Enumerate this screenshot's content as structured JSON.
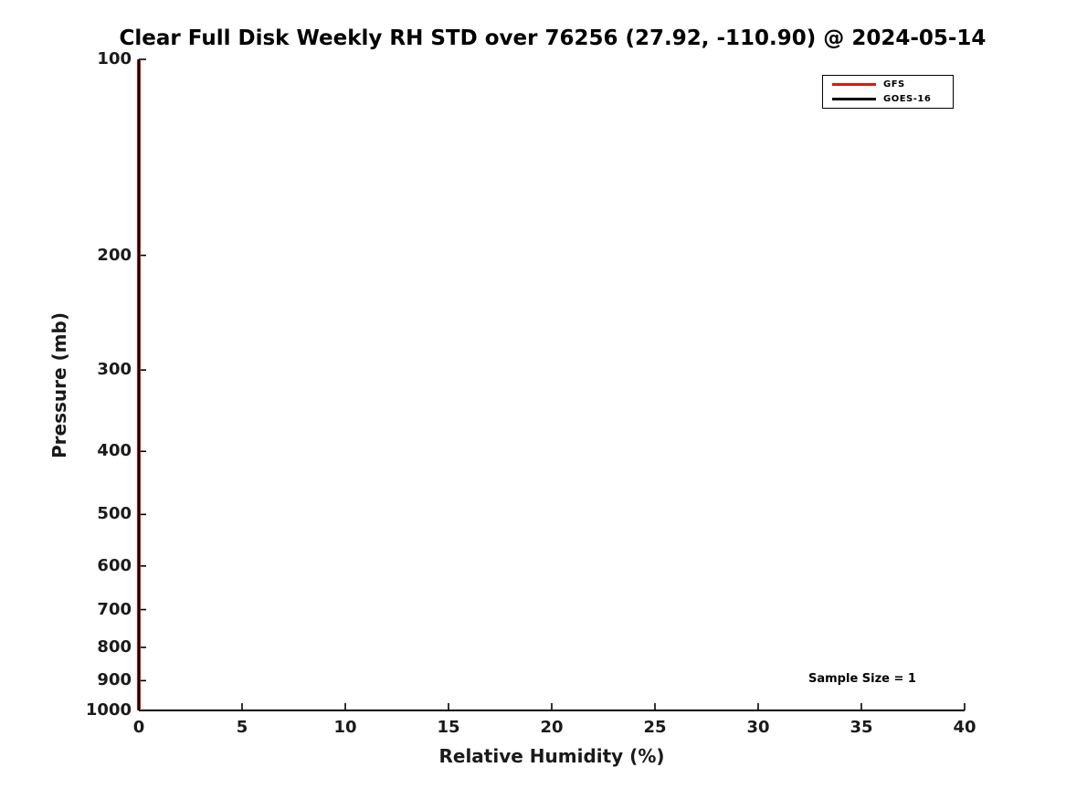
{
  "title": "Clear Full Disk Weekly RH STD over 76256 (27.92, -110.90) @ 2024-05-14",
  "annotation": {
    "sample_size": "Sample Size = 1"
  },
  "legend": {
    "position": "top-right",
    "items": [
      {
        "label": "GFS",
        "color": "#d81a15"
      },
      {
        "label": "GOES-16",
        "color": "#000000"
      }
    ]
  },
  "chart_data": {
    "type": "line",
    "title": "Clear Full Disk Weekly RH STD over 76256 (27.92, -110.90) @ 2024-05-14",
    "xlabel": "Relative Humidity (%)",
    "ylabel": "Pressure (mb)",
    "xlim": [
      0,
      40
    ],
    "x_ticks": [
      0,
      5,
      10,
      15,
      20,
      25,
      30,
      35,
      40
    ],
    "ylim": [
      100,
      1000
    ],
    "y_scale": "log",
    "y_axis_inverted": true,
    "y_ticks": [
      100,
      200,
      300,
      400,
      500,
      600,
      700,
      800,
      900,
      1000
    ],
    "grid": false,
    "legend_position": "top-right",
    "annotation": "Sample Size = 1",
    "categories_pressure_mb": [
      100,
      200,
      300,
      400,
      500,
      600,
      700,
      800,
      900,
      1000
    ],
    "series": [
      {
        "name": "GFS",
        "color": "#d81a15",
        "values": [
          0,
          0,
          0,
          0,
          0,
          0,
          0,
          0,
          0,
          0
        ]
      },
      {
        "name": "GOES-16",
        "color": "#000000",
        "values": [
          0,
          0,
          0,
          0,
          0,
          0,
          0,
          0,
          0,
          0
        ]
      }
    ]
  }
}
